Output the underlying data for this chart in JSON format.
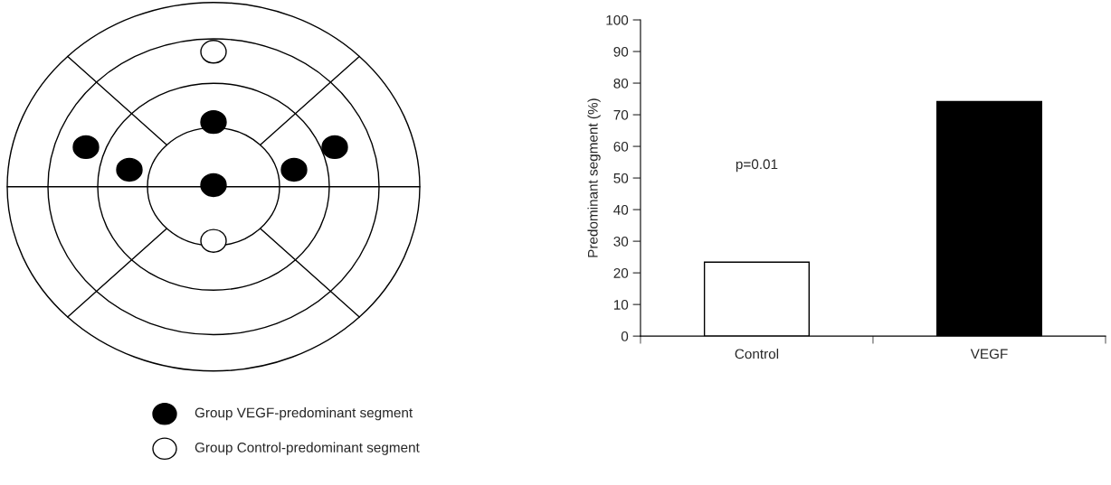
{
  "chart_data": [
    {
      "type": "other",
      "annotations": [
        "Group VEGF-predominant segment",
        "Group Control-predominant segment"
      ]
    },
    {
      "type": "bar",
      "ylabel": "Predominant segment (%)",
      "categories": [
        "Control",
        "VEGF"
      ],
      "values": [
        23.4,
        74.2
      ],
      "colors": [
        "#ffffff",
        "#000000"
      ],
      "ylim": [
        0,
        100
      ],
      "yticks": [
        0,
        10,
        20,
        30,
        40,
        50,
        60,
        70,
        80,
        90,
        100
      ],
      "grid": false,
      "legend": false,
      "annotations": [
        "p=0.01"
      ]
    }
  ]
}
